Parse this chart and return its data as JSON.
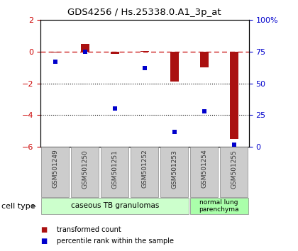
{
  "title": "GDS4256 / Hs.25338.0.A1_3p_at",
  "samples": [
    "GSM501249",
    "GSM501250",
    "GSM501251",
    "GSM501252",
    "GSM501253",
    "GSM501254",
    "GSM501255"
  ],
  "transformed_count": [
    -0.05,
    0.5,
    -0.15,
    0.05,
    -1.9,
    -1.0,
    -5.5
  ],
  "percentile_rank": [
    67,
    75,
    30,
    62,
    12,
    28,
    2
  ],
  "ylim_left": [
    -6,
    2
  ],
  "ylim_right": [
    0,
    100
  ],
  "bar_color": "#aa1111",
  "dot_color": "#0000cc",
  "plot_bg": "#ffffff",
  "dashed_line_color": "#cc2222",
  "cell_group1_label": "caseous TB granulomas",
  "cell_group1_color": "#ccffcc",
  "cell_group1_n": 5,
  "cell_group2_label": "normal lung\nparenchyma",
  "cell_group2_color": "#aaffaa",
  "cell_group2_n": 2,
  "left_yticks": [
    2,
    0,
    -2,
    -4,
    -6
  ],
  "right_yticklabels": [
    "100%",
    "75",
    "50",
    "25",
    "0"
  ],
  "right_ytick_vals": [
    100,
    75,
    50,
    25,
    0
  ],
  "legend_items": [
    "transformed count",
    "percentile rank within the sample"
  ],
  "tick_color_left": "#cc0000",
  "tick_color_right": "#0000cc",
  "sample_box_color": "#cccccc",
  "sample_box_edge": "#888888",
  "sample_text_color": "#333333"
}
